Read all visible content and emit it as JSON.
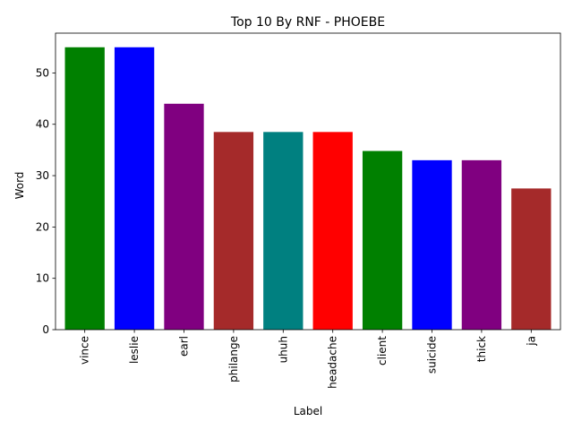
{
  "chart_data": {
    "type": "bar",
    "title": "Top 10 By RNF - PHOEBE",
    "xlabel": "Label",
    "ylabel": "Word",
    "categories": [
      "vince",
      "leslie",
      "earl",
      "philange",
      "uhuh",
      "headache",
      "client",
      "suicide",
      "thick",
      "ja"
    ],
    "values": [
      55.0,
      55.0,
      44.0,
      38.5,
      38.5,
      38.5,
      34.8,
      33.0,
      33.0,
      27.5
    ],
    "colors": [
      "#008000",
      "#0000ff",
      "#800080",
      "#a52a2a",
      "#008080",
      "#ff0000",
      "#008000",
      "#0000ff",
      "#800080",
      "#a52a2a"
    ],
    "ylim": [
      0,
      57.75
    ],
    "yticks": [
      0,
      10,
      20,
      30,
      40,
      50
    ],
    "xtick_rotation": "vertical",
    "grid": false,
    "legend": "none"
  }
}
